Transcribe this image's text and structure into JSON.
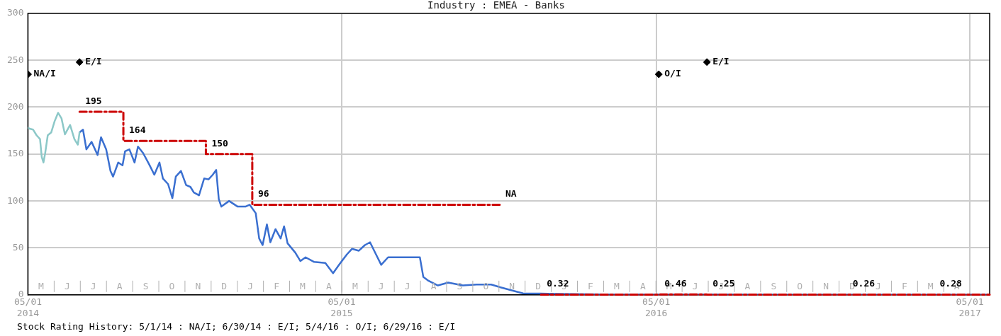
{
  "chart_data": {
    "type": "line",
    "title": "Industry : EMEA - Banks",
    "xlim": [
      "2014-05-01",
      "2017-05-24"
    ],
    "xticks": [
      {
        "value": "2014-05-01",
        "label": "05/01 2014"
      },
      {
        "value": "2015-05-01",
        "label": "05/01 2015"
      },
      {
        "value": "2016-05-01",
        "label": "05/01 2016"
      },
      {
        "value": "2017-05-01",
        "label": "05/01 2017"
      }
    ],
    "ylim": [
      0,
      300
    ],
    "yticks": [
      0,
      50,
      100,
      150,
      200,
      250,
      300
    ],
    "grid": true,
    "legend": false,
    "series": [
      {
        "type": "line",
        "color": "#8cc8c8",
        "x": [
          "2014-05-01",
          "2014-05-03",
          "2014-05-07",
          "2014-05-11",
          "2014-05-15",
          "2014-05-17",
          "2014-05-19",
          "2014-05-21",
          "2014-05-24",
          "2014-05-28",
          "2014-06-01",
          "2014-06-05",
          "2014-06-09",
          "2014-06-13",
          "2014-06-19",
          "2014-06-24",
          "2014-06-28",
          "2014-06-30"
        ],
        "values": [
          178,
          177,
          176,
          170,
          166,
          147,
          141,
          151,
          170,
          173,
          185,
          194,
          188,
          171,
          181,
          166,
          160,
          173
        ]
      },
      {
        "type": "line",
        "color": "#3a6fd0",
        "x": [
          "2014-06-30",
          "2014-07-04",
          "2014-07-08",
          "2014-07-14",
          "2014-07-21",
          "2014-07-25",
          "2014-07-31",
          "2014-08-05",
          "2014-08-08",
          "2014-08-14",
          "2014-08-19",
          "2014-08-22",
          "2014-08-27",
          "2014-09-02",
          "2014-09-06",
          "2014-09-12",
          "2014-09-19",
          "2014-09-25",
          "2014-10-01",
          "2014-10-05",
          "2014-10-11",
          "2014-10-16",
          "2014-10-20",
          "2014-10-26",
          "2014-11-01",
          "2014-11-06",
          "2014-11-10",
          "2014-11-16",
          "2014-11-22",
          "2014-11-27",
          "2014-12-02",
          "2014-12-06",
          "2014-12-09",
          "2014-12-12",
          "2014-12-21",
          "2014-12-31",
          "2015-01-09",
          "2015-01-14",
          "2015-01-21",
          "2015-01-25",
          "2015-01-29",
          "2015-02-03",
          "2015-02-07",
          "2015-02-13",
          "2015-02-19",
          "2015-02-23",
          "2015-02-27",
          "2015-03-08",
          "2015-03-14",
          "2015-03-20",
          "2015-03-30",
          "2015-04-12",
          "2015-04-21",
          "2015-04-28",
          "2015-05-07",
          "2015-05-13",
          "2015-05-21",
          "2015-05-28",
          "2015-06-03",
          "2015-06-10",
          "2015-06-16",
          "2015-06-24",
          "2015-07-31",
          "2015-08-04",
          "2015-08-10",
          "2015-08-21",
          "2015-09-02",
          "2015-09-19",
          "2015-10-05",
          "2015-10-22",
          "2015-11-02",
          "2015-11-18",
          "2015-11-28",
          "2015-12-27",
          "2016-03-01",
          "2016-06-01",
          "2016-10-01",
          "2017-02-01",
          "2017-05-24"
        ],
        "values": [
          173,
          176,
          155,
          163,
          149,
          168,
          155,
          132,
          126,
          141,
          138,
          153,
          155,
          141,
          158,
          151,
          139,
          128,
          141,
          124,
          118,
          103,
          126,
          132,
          117,
          115,
          109,
          106,
          124,
          123,
          128,
          133,
          102,
          94,
          100,
          94,
          94,
          96,
          87,
          60,
          53,
          75,
          56,
          70,
          60,
          73,
          55,
          45,
          36,
          40,
          35,
          34,
          23,
          32,
          43,
          49,
          47,
          53,
          56,
          43,
          32,
          40,
          40,
          19,
          15,
          10,
          13,
          10,
          11,
          11,
          8,
          4,
          1.5,
          1.2,
          0.4,
          0.4,
          0.3,
          0.3,
          0.3
        ]
      },
      {
        "type": "step",
        "color": "#cc0000",
        "line_style": "dashed",
        "x": [
          "2014-06-30",
          "2014-08-20",
          "2014-11-24",
          "2015-01-17",
          "2015-11-01",
          "2015-11-02",
          "2015-12-19",
          "2016-05-04",
          "2016-06-29",
          "2016-12-09",
          "2017-04-25",
          "2017-05-24"
        ],
        "values": [
          195,
          164,
          150,
          96,
          96,
          null,
          0.32,
          0.46,
          0.25,
          0.26,
          0.28,
          0.28
        ],
        "value_labels": [
          "195",
          "164",
          "150",
          "96",
          null,
          null,
          "0.32",
          "0.46",
          "0.25",
          "0.26",
          "0.28",
          null
        ]
      },
      {
        "type": "scatter",
        "color": "#000000",
        "marker": "diamond",
        "x": [
          "2014-05-01",
          "2014-06-30",
          "2016-05-04",
          "2016-06-29"
        ],
        "values": [
          235,
          248,
          235,
          248
        ],
        "value_labels": [
          "NA/I",
          "E/I",
          "O/I",
          "E/I"
        ]
      }
    ],
    "annotations": [
      {
        "text": "NA",
        "x": "2015-11-01",
        "y": 96
      },
      "M",
      "J",
      "J",
      "A",
      "S",
      "O",
      "N",
      "D",
      "J",
      "F",
      "M",
      "A",
      "M",
      "J",
      "J",
      "A",
      "S",
      "O",
      "N",
      "D",
      "J",
      "F",
      "M",
      "A",
      "M",
      "J",
      "J",
      "A",
      "S",
      "O",
      "N",
      "D",
      "J",
      "F",
      "M",
      "A",
      "Stock Rating History: 5/1/14 : NA/I; 6/30/14 : E/I; 5/4/16 : O/I; 6/29/16 : E/I"
    ]
  }
}
